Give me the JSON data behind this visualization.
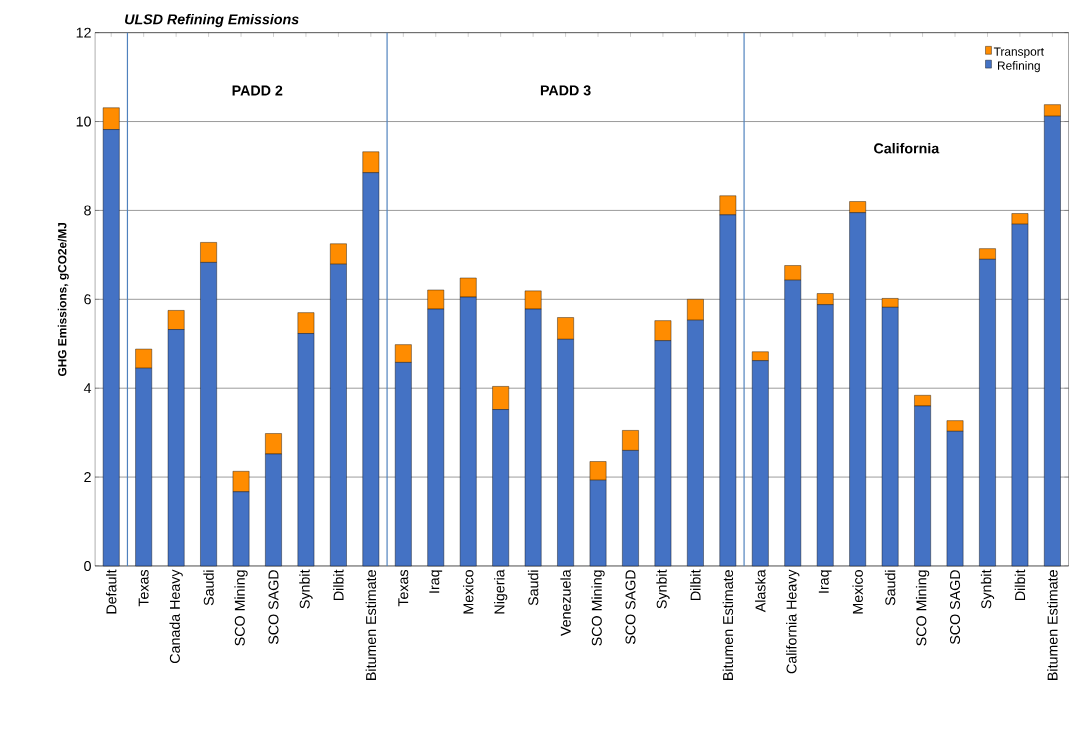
{
  "chart_data": {
    "type": "bar",
    "stacked": true,
    "title": "ULSD  Refining Emissions",
    "ylabel": "GHG Emissions, gCO2e/MJ",
    "categories": [
      "Default",
      "Texas",
      "Canada Heavy",
      "Saudi",
      "SCO Mining",
      "SCO SAGD",
      "Synbit",
      "Dilbit",
      "Bitumen Estimate",
      "Texas",
      "Iraq",
      "Mexico",
      "Nigeria",
      "Saudi",
      "Venezuela",
      "SCO Mining",
      "SCO SAGD",
      "Synbit",
      "Dilbit",
      "Bitumen Estimate",
      "Alaska",
      "California Heavy",
      "Iraq",
      "Mexico",
      "Saudi",
      "SCO Mining",
      "SCO SAGD",
      "Synbit",
      "Dilbit",
      "Bitumen Estimate"
    ],
    "series": [
      {
        "name": "Refining",
        "color": "#4472c4",
        "values": [
          9.82,
          4.45,
          5.32,
          6.83,
          1.67,
          2.52,
          5.23,
          6.79,
          8.85,
          4.58,
          5.78,
          6.05,
          3.52,
          5.78,
          5.1,
          1.93,
          2.6,
          5.07,
          5.53,
          7.9,
          4.62,
          6.43,
          5.88,
          7.95,
          5.82,
          3.6,
          3.03,
          6.9,
          7.69,
          10.12
        ]
      },
      {
        "name": "Transport",
        "color": "#ff8c00",
        "values": [
          0.49,
          0.43,
          0.43,
          0.45,
          0.46,
          0.46,
          0.47,
          0.46,
          0.47,
          0.4,
          0.43,
          0.43,
          0.52,
          0.41,
          0.49,
          0.42,
          0.45,
          0.45,
          0.47,
          0.43,
          0.2,
          0.33,
          0.25,
          0.25,
          0.2,
          0.24,
          0.24,
          0.24,
          0.24,
          0.26
        ]
      }
    ],
    "ylim": [
      0,
      12
    ],
    "yticks": [
      0,
      2,
      4,
      6,
      8,
      10,
      12
    ],
    "grid": "y",
    "legend": "top right",
    "annotations": [
      "PADD 2",
      "PADD 3",
      "California"
    ]
  }
}
